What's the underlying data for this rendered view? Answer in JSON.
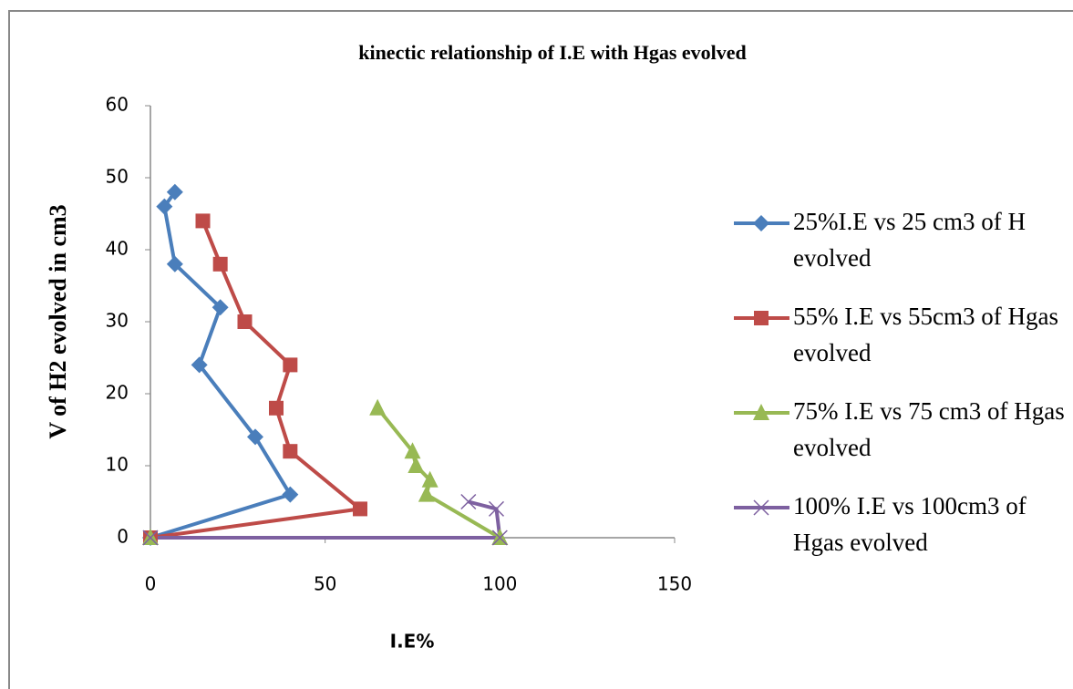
{
  "chart_data": {
    "type": "line",
    "title": "kinectic relationship of I.E with Hgas evolved",
    "xlabel": "I.E%",
    "ylabel": "V of H2 evolved in cm3",
    "xlim": [
      0,
      150
    ],
    "xticks": [
      0,
      50,
      100,
      150
    ],
    "ylim": [
      0,
      60
    ],
    "yticks": [
      0,
      10,
      20,
      30,
      40,
      50,
      60
    ],
    "grid": false,
    "legend": "right",
    "series": [
      {
        "name": "25%I.E vs 25 cm3 of H evolved",
        "color": "#4a7ebb",
        "marker": "diamond",
        "x": [
          0,
          40,
          30,
          14,
          20,
          7,
          4,
          7
        ],
        "values": [
          0,
          6,
          14,
          24,
          32,
          38,
          46,
          48
        ]
      },
      {
        "name": "55% I.E vs 55cm3 of Hgas evolved",
        "color": "#be4b48",
        "marker": "square",
        "x": [
          0,
          60,
          40,
          36,
          40,
          27,
          20,
          15
        ],
        "values": [
          0,
          4,
          12,
          18,
          24,
          30,
          38,
          44
        ]
      },
      {
        "name": "75% I.E vs 75 cm3 of Hgas evolved",
        "color": "#98b954",
        "marker": "triangle",
        "x": [
          0,
          100,
          79,
          80,
          76,
          75,
          65
        ],
        "values": [
          0,
          0,
          6,
          8,
          10,
          12,
          18
        ]
      },
      {
        "name": "100% I.E vs 100cm3 of Hgas evolved",
        "color": "#7d60a0",
        "marker": "x",
        "x": [
          0,
          100,
          99,
          91
        ],
        "values": [
          0,
          0,
          4,
          5
        ]
      }
    ]
  }
}
